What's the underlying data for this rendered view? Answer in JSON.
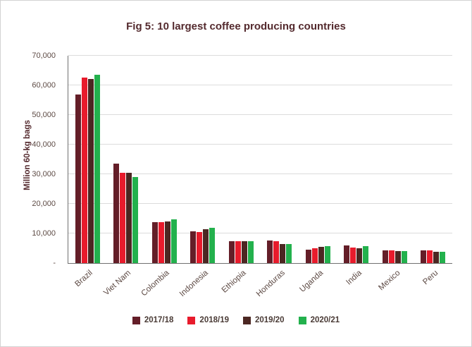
{
  "chart_data": {
    "type": "bar",
    "title": "Fig 5: 10 largest coffee producing countries",
    "xlabel": "",
    "ylabel": "Million 60-kg bags",
    "ylim": [
      0,
      70000
    ],
    "grid": true,
    "legend_position": "bottom",
    "categories": [
      "Brazil",
      "Viet Nam",
      "Colombia",
      "Indonesia",
      "Ethiopia",
      "Honduras",
      "Uganda",
      "India",
      "Mexico",
      "Peru"
    ],
    "series": [
      {
        "name": "2017/18",
        "color": "#641e28",
        "values": [
          57000,
          33500,
          13900,
          10600,
          7400,
          7700,
          4500,
          5900,
          4400,
          4300
        ]
      },
      {
        "name": "2018/19",
        "color": "#e81b2c",
        "values": [
          62700,
          30500,
          13900,
          10400,
          7500,
          7300,
          5100,
          5200,
          4400,
          4300
        ]
      },
      {
        "name": "2019/20",
        "color": "#4c2722",
        "values": [
          62200,
          30400,
          14100,
          11500,
          7500,
          6500,
          5500,
          5000,
          4000,
          3800
        ]
      },
      {
        "name": "2020/21",
        "color": "#23b14d",
        "values": [
          63500,
          29000,
          14700,
          12000,
          7400,
          6400,
          5800,
          5700,
          4100,
          3700
        ]
      }
    ],
    "yticks": [
      {
        "value": 70000,
        "label": "70,000"
      },
      {
        "value": 60000,
        "label": "60,000"
      },
      {
        "value": 50000,
        "label": "50,000"
      },
      {
        "value": 40000,
        "label": "40,000"
      },
      {
        "value": 30000,
        "label": "30,000"
      },
      {
        "value": 20000,
        "label": "20,000"
      },
      {
        "value": 10000,
        "label": "10,000"
      },
      {
        "value": 0,
        "label": "-"
      }
    ],
    "colors": {
      "title_text": "#542a2e",
      "axis_text": "#5d4a44",
      "axis_line": "#707070",
      "gridline": "#dcdcdc",
      "background": "#ffffff",
      "page_border": "#d2d2d2"
    }
  }
}
